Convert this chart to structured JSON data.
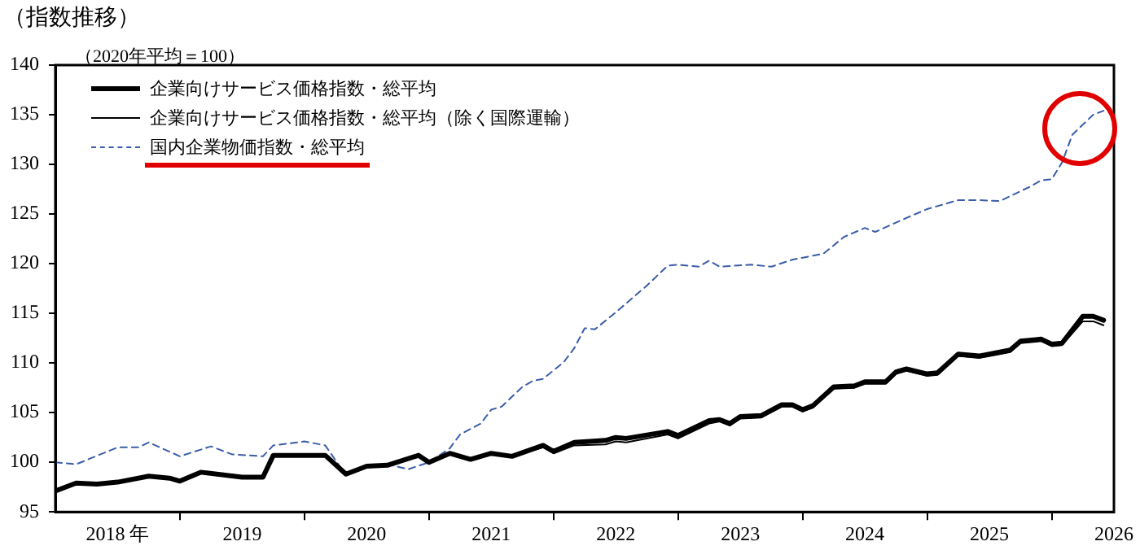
{
  "chart_data": {
    "type": "line",
    "title": "（指数推移）",
    "subtitle": "（2020年平均＝100）",
    "xlim": [
      "2017-07",
      "2026-01"
    ],
    "xticks": [
      {
        "value": "2018-01",
        "label": "2018 年"
      },
      {
        "value": "2018-07",
        "label": null
      },
      {
        "value": "2019-01",
        "label": "2019"
      },
      {
        "value": "2019-07",
        "label": null
      },
      {
        "value": "2020-01",
        "label": "2020"
      },
      {
        "value": "2020-07",
        "label": null
      },
      {
        "value": "2021-01",
        "label": "2021"
      },
      {
        "value": "2021-07",
        "label": null
      },
      {
        "value": "2022-01",
        "label": "2022"
      },
      {
        "value": "2022-07",
        "label": null
      },
      {
        "value": "2023-01",
        "label": "2023"
      },
      {
        "value": "2023-07",
        "label": null
      },
      {
        "value": "2024-01",
        "label": "2024"
      },
      {
        "value": "2024-07",
        "label": null
      },
      {
        "value": "2025-01",
        "label": "2025"
      },
      {
        "value": "2025-07",
        "label": null
      },
      {
        "value": "2026-01",
        "label": "2026"
      }
    ],
    "ylim": [
      95,
      140
    ],
    "yticks": [
      95,
      100,
      105,
      110,
      115,
      120,
      125,
      130,
      135,
      140
    ],
    "grid": false,
    "legend": "top left",
    "marker": "none",
    "series": [
      {
        "name": "企業向けサービス価格指数・総平均",
        "color": "#000000",
        "line_style": "solid",
        "x": [
          "2017-07",
          "2017-09",
          "2017-11",
          "2018-01",
          "2018-04",
          "2018-06",
          "2018-07",
          "2018-09",
          "2019-01",
          "2019-03",
          "2019-04",
          "2019-09",
          "2019-11",
          "2020-01",
          "2020-03",
          "2020-06",
          "2020-07",
          "2020-09",
          "2020-11",
          "2021-01",
          "2021-03",
          "2021-06",
          "2021-07",
          "2021-09",
          "2021-12",
          "2022-01",
          "2022-02",
          "2022-06",
          "2022-07",
          "2022-10",
          "2022-11",
          "2022-12",
          "2023-01",
          "2023-03",
          "2023-05",
          "2023-06",
          "2023-07",
          "2023-08",
          "2023-10",
          "2023-12",
          "2024-01",
          "2024-03",
          "2024-04",
          "2024-05",
          "2024-07",
          "2024-08",
          "2024-10",
          "2024-12",
          "2025-02",
          "2025-03",
          "2025-04",
          "2025-06",
          "2025-07",
          "2025-08",
          "2025-10",
          "2025-11",
          "2025-12"
        ],
        "values": [
          97.1,
          97.9,
          97.8,
          98.0,
          98.6,
          98.4,
          98.1,
          99.0,
          98.5,
          98.5,
          100.7,
          100.7,
          98.8,
          99.6,
          99.7,
          100.7,
          100.0,
          100.9,
          100.3,
          100.9,
          100.6,
          101.7,
          101.1,
          102.0,
          102.2,
          102.5,
          102.4,
          103.1,
          102.7,
          104.2,
          104.3,
          103.9,
          104.6,
          104.7,
          105.8,
          105.8,
          105.3,
          105.7,
          107.6,
          107.7,
          108.1,
          108.1,
          109.1,
          109.4,
          108.9,
          109.0,
          110.9,
          110.7,
          111.1,
          111.3,
          112.2,
          112.4,
          111.9,
          112.0,
          114.7,
          114.7,
          114.3
        ]
      },
      {
        "name": "企業向けサービス価格指数・総平均（除く国際運輸）",
        "color": "#000000",
        "line_style": "solid",
        "x": [
          "2017-07",
          "2017-09",
          "2017-11",
          "2018-01",
          "2018-04",
          "2018-06",
          "2018-07",
          "2018-09",
          "2019-01",
          "2019-03",
          "2019-04",
          "2019-09",
          "2019-11",
          "2020-01",
          "2020-03",
          "2020-06",
          "2020-07",
          "2020-09",
          "2020-11",
          "2021-01",
          "2021-03",
          "2021-06",
          "2021-07",
          "2021-09",
          "2021-12",
          "2022-01",
          "2022-02",
          "2022-06",
          "2022-07",
          "2022-10",
          "2022-11",
          "2022-12",
          "2023-01",
          "2023-03",
          "2023-05",
          "2023-06",
          "2023-07",
          "2023-08",
          "2023-10",
          "2023-12",
          "2024-01",
          "2024-03",
          "2024-04",
          "2024-05",
          "2024-07",
          "2024-08",
          "2024-10",
          "2024-12",
          "2025-02",
          "2025-03",
          "2025-04",
          "2025-06",
          "2025-07",
          "2025-08",
          "2025-10",
          "2025-11",
          "2025-12"
        ],
        "values": [
          97.1,
          97.9,
          97.8,
          98.0,
          98.6,
          98.4,
          98.1,
          99.0,
          98.5,
          98.5,
          100.7,
          100.7,
          98.8,
          99.6,
          99.7,
          100.7,
          100.0,
          100.9,
          100.3,
          100.9,
          100.6,
          101.5,
          100.9,
          101.7,
          101.8,
          102.1,
          102.0,
          102.8,
          102.4,
          103.9,
          104.1,
          103.7,
          104.4,
          104.5,
          105.6,
          105.6,
          105.1,
          105.5,
          107.4,
          107.5,
          107.9,
          107.9,
          108.9,
          109.2,
          108.7,
          108.8,
          110.7,
          110.5,
          110.9,
          111.1,
          112.0,
          112.2,
          111.7,
          111.8,
          114.2,
          114.2,
          113.8
        ]
      },
      {
        "name": "国内企業物価指数・総平均",
        "color": "#3a5da8",
        "line_style": "dashed",
        "x": [
          "2017-07",
          "2017-09",
          "2018-01",
          "2018-03",
          "2018-04",
          "2018-07",
          "2018-10",
          "2018-12",
          "2019-03",
          "2019-04",
          "2019-07",
          "2019-09",
          "2019-11",
          "2020-01",
          "2020-03",
          "2020-05",
          "2020-07",
          "2020-09",
          "2020-10",
          "2020-12",
          "2021-01",
          "2021-02",
          "2021-04",
          "2021-05",
          "2021-06",
          "2021-08",
          "2021-09",
          "2021-10",
          "2021-11",
          "2022-01",
          "2022-02",
          "2022-04",
          "2022-06",
          "2022-07",
          "2022-09",
          "2022-10",
          "2022-11",
          "2023-02",
          "2023-04",
          "2023-06",
          "2023-09",
          "2023-11",
          "2024-01",
          "2024-02",
          "2024-05",
          "2024-07",
          "2024-10",
          "2024-12",
          "2025-02",
          "2025-05",
          "2025-06",
          "2025-07",
          "2025-08",
          "2025-09",
          "2025-11",
          "2025-12"
        ],
        "values": [
          100.0,
          99.8,
          101.5,
          101.5,
          102.0,
          100.6,
          101.6,
          100.8,
          100.6,
          101.7,
          102.1,
          101.7,
          98.7,
          99.6,
          99.8,
          99.3,
          100.0,
          101.4,
          102.8,
          103.9,
          105.3,
          105.6,
          107.6,
          108.2,
          108.4,
          110.1,
          111.5,
          113.5,
          113.4,
          115.1,
          116.0,
          117.8,
          119.8,
          119.9,
          119.7,
          120.3,
          119.7,
          119.9,
          119.7,
          120.4,
          121.0,
          122.7,
          123.6,
          123.2,
          124.6,
          125.5,
          126.4,
          126.4,
          126.3,
          127.8,
          128.4,
          128.5,
          130.2,
          133.0,
          135.0,
          135.4
        ]
      }
    ]
  }
}
